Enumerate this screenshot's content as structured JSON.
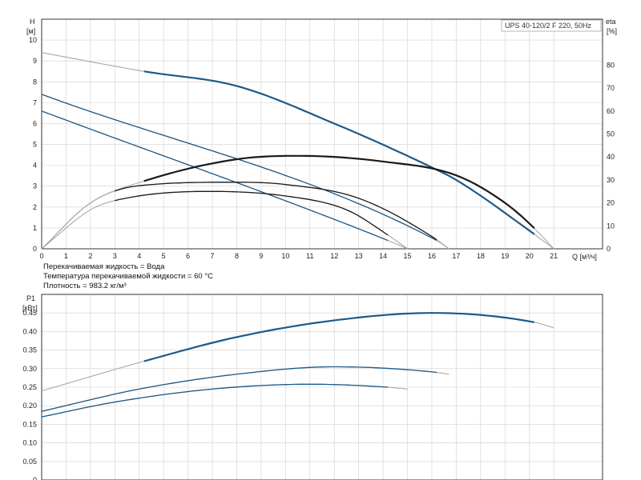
{
  "chart_data": [
    {
      "type": "line",
      "title": "",
      "legend": "UPS 40-120/2 F 220, 50Hz",
      "left_axis_label": "H",
      "left_axis_unit": "[м]",
      "right_axis_label": "eta",
      "right_axis_unit": "[%]",
      "xlabel": "Q [м³/ч]",
      "xlim": [
        0,
        23
      ],
      "ylim": [
        0,
        11
      ],
      "y2lim": [
        0,
        100
      ],
      "x_ticks": [
        "0",
        "1",
        "2",
        "3",
        "4",
        "5",
        "6",
        "7",
        "8",
        "9",
        "10",
        "11",
        "12",
        "13",
        "14",
        "15",
        "16",
        "17",
        "18",
        "19",
        "20",
        "21"
      ],
      "y_ticks": [
        "0",
        "1",
        "2",
        "3",
        "4",
        "5",
        "6",
        "7",
        "8",
        "9",
        "10"
      ],
      "y2_ticks": [
        "0",
        "10",
        "20",
        "30",
        "40",
        "50",
        "60",
        "70",
        "80"
      ],
      "grid": true,
      "notes": [
        "Перекачиваемая жидкость = Вода",
        "Температура перекачиваемой жидкости = 60 °C",
        "Плотность = 983.2 кг/м³"
      ],
      "series": [
        {
          "kind": "head",
          "speed": 1,
          "x": [
            0,
            4.2,
            8,
            12,
            16,
            17,
            20.2,
            21
          ],
          "y": [
            9.4,
            8.5,
            7.8,
            6.0,
            3.9,
            3.3,
            0.7,
            0
          ],
          "operating_range": [
            4.2,
            20.2
          ]
        },
        {
          "kind": "head",
          "speed": 2,
          "x": [
            0,
            16.2,
            16.7
          ],
          "y": [
            7.4,
            0.4,
            0
          ],
          "operating_range": [
            0,
            16.2
          ]
        },
        {
          "kind": "head",
          "speed": 3,
          "x": [
            0,
            14.2,
            15
          ],
          "y": [
            6.6,
            0.4,
            0
          ],
          "operating_range": [
            0,
            14.2
          ]
        },
        {
          "kind": "eta",
          "speed": 1,
          "x": [
            0,
            2,
            4.2,
            8,
            10.5,
            14,
            17,
            19,
            20.2,
            21
          ],
          "y": [
            0,
            20,
            29.5,
            39,
            40.5,
            38,
            32,
            20,
            9,
            0
          ],
          "operating_range": [
            4.2,
            20.2
          ]
        },
        {
          "kind": "eta",
          "speed": 2,
          "x": [
            0,
            2,
            4,
            8,
            10,
            13,
            16.2,
            16.7
          ],
          "y": [
            0,
            20,
            27.5,
            29,
            28,
            22,
            4,
            0
          ],
          "operating_range": [
            3,
            16.2
          ]
        },
        {
          "kind": "eta",
          "speed": 3,
          "x": [
            0,
            2,
            3,
            6.8,
            10,
            12.5,
            14.2,
            15
          ],
          "y": [
            0,
            17,
            21,
            25,
            23,
            17,
            6,
            0
          ],
          "operating_range": [
            3,
            14.2
          ]
        }
      ]
    },
    {
      "type": "line",
      "title": "",
      "left_axis_label": "P1",
      "left_axis_unit": "[кВт]",
      "xlim": [
        0,
        23
      ],
      "ylim": [
        0,
        0.5
      ],
      "y_ticks": [
        "0",
        "0.05",
        "0.10",
        "0.15",
        "0.20",
        "0.25",
        "0.30",
        "0.35",
        "0.40",
        "0.45"
      ],
      "grid": true,
      "series": [
        {
          "speed": 1,
          "x": [
            0,
            4.2,
            8,
            12,
            16,
            20.2,
            21
          ],
          "y": [
            0.24,
            0.32,
            0.385,
            0.43,
            0.45,
            0.425,
            0.41
          ],
          "operating_range": [
            4.2,
            20.2
          ]
        },
        {
          "speed": 2,
          "x": [
            0,
            4,
            8,
            12,
            16.2,
            16.7
          ],
          "y": [
            0.185,
            0.245,
            0.285,
            0.305,
            0.29,
            0.285
          ],
          "operating_range": [
            0,
            16.2
          ]
        },
        {
          "speed": 3,
          "x": [
            0,
            3,
            7,
            11,
            14.2,
            15
          ],
          "y": [
            0.17,
            0.21,
            0.245,
            0.258,
            0.25,
            0.245
          ],
          "operating_range": [
            0,
            14.2
          ]
        }
      ]
    }
  ],
  "colors": {
    "head_line": "#1b5a8a",
    "eta_line": "#1a1a1a",
    "extension_line": "#a8a8a8",
    "grid": "#d0d0d0",
    "axis": "#333333"
  }
}
